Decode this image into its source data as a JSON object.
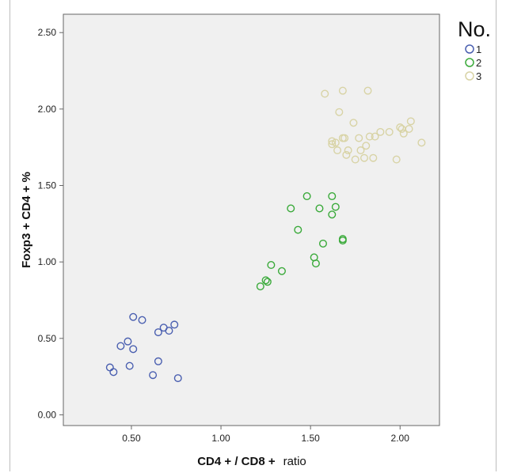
{
  "chart_data": {
    "type": "scatter",
    "title": "",
    "xlabel_bold": "CD4 + / CD8 +",
    "xlabel_plain": "ratio",
    "ylabel": "Foxp3 + CD4 + %",
    "xlim": [
      0.12,
      2.22
    ],
    "ylim": [
      -0.07,
      2.62
    ],
    "x_ticks": [
      "0.50",
      "1.00",
      "1.50",
      "2.00"
    ],
    "y_ticks": [
      "0.00",
      "0.50",
      "1.00",
      "1.50",
      "2.00",
      "2.50"
    ],
    "grid": false,
    "legend": {
      "title": "No.",
      "position": "right"
    },
    "series": [
      {
        "name": "1",
        "color": "#4a5fb0",
        "points": [
          [
            0.38,
            0.31
          ],
          [
            0.4,
            0.28
          ],
          [
            0.44,
            0.45
          ],
          [
            0.48,
            0.48
          ],
          [
            0.49,
            0.32
          ],
          [
            0.51,
            0.43
          ],
          [
            0.51,
            0.64
          ],
          [
            0.56,
            0.62
          ],
          [
            0.62,
            0.26
          ],
          [
            0.65,
            0.35
          ],
          [
            0.65,
            0.54
          ],
          [
            0.68,
            0.57
          ],
          [
            0.71,
            0.55
          ],
          [
            0.74,
            0.59
          ],
          [
            0.76,
            0.24
          ]
        ]
      },
      {
        "name": "2",
        "color": "#3aaa3a",
        "points": [
          [
            1.22,
            0.84
          ],
          [
            1.25,
            0.88
          ],
          [
            1.26,
            0.87
          ],
          [
            1.28,
            0.98
          ],
          [
            1.34,
            0.94
          ],
          [
            1.39,
            1.35
          ],
          [
            1.43,
            1.21
          ],
          [
            1.48,
            1.43
          ],
          [
            1.52,
            1.03
          ],
          [
            1.53,
            0.99
          ],
          [
            1.55,
            1.35
          ],
          [
            1.57,
            1.12
          ],
          [
            1.62,
            1.43
          ],
          [
            1.62,
            1.31
          ],
          [
            1.64,
            1.36
          ],
          [
            1.68,
            1.15
          ],
          [
            1.68,
            1.14
          ]
        ]
      },
      {
        "name": "3",
        "color": "#d8d3a5",
        "points": [
          [
            1.58,
            2.1
          ],
          [
            1.62,
            1.77
          ],
          [
            1.62,
            1.79
          ],
          [
            1.64,
            1.78
          ],
          [
            1.65,
            1.73
          ],
          [
            1.66,
            1.98
          ],
          [
            1.68,
            2.12
          ],
          [
            1.68,
            1.81
          ],
          [
            1.69,
            1.81
          ],
          [
            1.7,
            1.7
          ],
          [
            1.71,
            1.73
          ],
          [
            1.74,
            1.91
          ],
          [
            1.75,
            1.67
          ],
          [
            1.77,
            1.81
          ],
          [
            1.78,
            1.73
          ],
          [
            1.8,
            1.68
          ],
          [
            1.81,
            1.76
          ],
          [
            1.82,
            2.12
          ],
          [
            1.83,
            1.82
          ],
          [
            1.85,
            1.68
          ],
          [
            1.86,
            1.82
          ],
          [
            1.89,
            1.85
          ],
          [
            1.94,
            1.85
          ],
          [
            1.98,
            1.67
          ],
          [
            2.0,
            1.88
          ],
          [
            2.01,
            1.87
          ],
          [
            2.02,
            1.84
          ],
          [
            2.05,
            1.87
          ],
          [
            2.06,
            1.92
          ],
          [
            2.12,
            1.78
          ]
        ]
      }
    ]
  }
}
